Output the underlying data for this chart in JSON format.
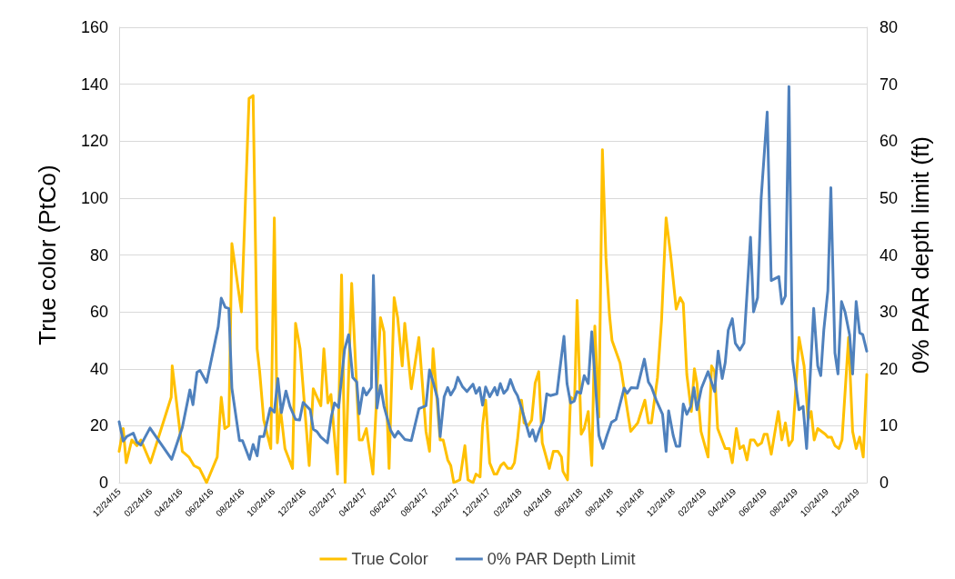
{
  "chart_data": {
    "type": "line",
    "ylabel": "True color (PtCo)",
    "y2label": "0% PAR depth limit (ft)",
    "xlim": [
      "2015-12-24",
      "2020-01-11"
    ],
    "xticks": [
      {
        "value": "2015-12-24",
        "label": "12/24/15"
      },
      {
        "value": "2016-02-24",
        "label": "02/24/16"
      },
      {
        "value": "2016-04-24",
        "label": "04/24/16"
      },
      {
        "value": "2016-06-24",
        "label": "06/24/16"
      },
      {
        "value": "2016-08-24",
        "label": "08/24/16"
      },
      {
        "value": "2016-10-24",
        "label": "10/24/16"
      },
      {
        "value": "2016-12-24",
        "label": "12/24/16"
      },
      {
        "value": "2017-02-24",
        "label": "02/24/17"
      },
      {
        "value": "2017-04-24",
        "label": "04/24/17"
      },
      {
        "value": "2017-06-24",
        "label": "06/24/17"
      },
      {
        "value": "2017-08-24",
        "label": "08/24/17"
      },
      {
        "value": "2017-10-24",
        "label": "10/24/17"
      },
      {
        "value": "2017-12-24",
        "label": "12/24/17"
      },
      {
        "value": "2018-02-24",
        "label": "02/24/18"
      },
      {
        "value": "2018-04-24",
        "label": "04/24/18"
      },
      {
        "value": "2018-06-24",
        "label": "06/24/18"
      },
      {
        "value": "2018-08-24",
        "label": "08/24/18"
      },
      {
        "value": "2018-10-24",
        "label": "10/24/18"
      },
      {
        "value": "2018-12-24",
        "label": "12/24/18"
      },
      {
        "value": "2019-02-24",
        "label": "02/24/19"
      },
      {
        "value": "2019-04-24",
        "label": "04/24/19"
      },
      {
        "value": "2019-06-24",
        "label": "06/24/19"
      },
      {
        "value": "2019-08-24",
        "label": "08/24/19"
      },
      {
        "value": "2019-10-24",
        "label": "10/24/19"
      },
      {
        "value": "2019-12-24",
        "label": "12/24/19"
      }
    ],
    "ylim": [
      0,
      160
    ],
    "yticks": [
      0,
      20,
      40,
      60,
      80,
      100,
      120,
      140,
      160
    ],
    "y2lim": [
      0,
      80
    ],
    "y2ticks": [
      0,
      10,
      20,
      30,
      40,
      50,
      60,
      70,
      80
    ],
    "grid": "y",
    "legend": "bottom",
    "marker": "none",
    "line_style": "solid",
    "series": [
      {
        "name": "True Color",
        "color": "#ffc000",
        "x": [
          "2015-12-24",
          "2016-01-01",
          "2016-01-07",
          "2016-01-18",
          "2016-01-28",
          "2016-02-05",
          "2016-02-24",
          "2016-04-05",
          "2016-04-07",
          "2016-04-27",
          "2016-05-10",
          "2016-05-20",
          "2016-05-31",
          "2016-06-14",
          "2016-07-05",
          "2016-07-13",
          "2016-07-20",
          "2016-07-28",
          "2016-08-03",
          "2016-08-22",
          "2016-09-06",
          "2016-09-14",
          "2016-09-22",
          "2016-09-27",
          "2016-10-05",
          "2016-10-19",
          "2016-10-26",
          "2016-11-01",
          "2016-11-07",
          "2016-11-16",
          "2016-12-01",
          "2016-12-07",
          "2016-12-16",
          "2017-01-03",
          "2017-01-11",
          "2017-01-26",
          "2017-02-01",
          "2017-02-09",
          "2017-02-15",
          "2017-02-28",
          "2017-03-08",
          "2017-03-15",
          "2017-03-28",
          "2017-04-12",
          "2017-04-18",
          "2017-04-26",
          "2017-05-09",
          "2017-05-24",
          "2017-05-31",
          "2017-06-10",
          "2017-06-20",
          "2017-06-27",
          "2017-07-06",
          "2017-07-11",
          "2017-07-24",
          "2017-08-08",
          "2017-08-22",
          "2017-08-29",
          "2017-09-05",
          "2017-09-19",
          "2017-09-25",
          "2017-10-04",
          "2017-10-10",
          "2017-10-16",
          "2017-10-28",
          "2017-11-07",
          "2017-11-13",
          "2017-11-23",
          "2017-11-29",
          "2017-12-07",
          "2017-12-12",
          "2017-12-18",
          "2017-12-26",
          "2018-01-04",
          "2018-01-09",
          "2018-01-17",
          "2018-01-23",
          "2018-01-31",
          "2018-02-07",
          "2018-02-13",
          "2018-02-19",
          "2018-02-27",
          "2018-03-04",
          "2018-03-12",
          "2018-03-19",
          "2018-03-26",
          "2018-04-02",
          "2018-04-09",
          "2018-04-23",
          "2018-05-01",
          "2018-05-10",
          "2018-05-17",
          "2018-05-20",
          "2018-05-29",
          "2018-06-04",
          "2018-06-12",
          "2018-06-17",
          "2018-06-25",
          "2018-07-01",
          "2018-07-09",
          "2018-07-16",
          "2018-07-22",
          "2018-07-30",
          "2018-08-06",
          "2018-08-13",
          "2018-08-20",
          "2018-08-25",
          "2018-09-10",
          "2018-09-23",
          "2018-10-01",
          "2018-10-15",
          "2018-10-29",
          "2018-11-05",
          "2018-11-11",
          "2018-11-23",
          "2018-12-01",
          "2018-12-10",
          "2018-12-19",
          "2018-12-30",
          "2019-01-07",
          "2019-01-13",
          "2019-01-20",
          "2019-01-29",
          "2019-02-04",
          "2019-02-09",
          "2019-02-17",
          "2019-03-03",
          "2019-03-10",
          "2019-03-16",
          "2019-03-22",
          "2019-04-06",
          "2019-04-14",
          "2019-04-20",
          "2019-04-28",
          "2019-05-05",
          "2019-05-12",
          "2019-05-19",
          "2019-05-26",
          "2019-06-02",
          "2019-06-09",
          "2019-06-17",
          "2019-06-22",
          "2019-06-28",
          "2019-07-06",
          "2019-07-20",
          "2019-07-27",
          "2019-08-03",
          "2019-08-10",
          "2019-08-17",
          "2019-08-30",
          "2019-09-09",
          "2019-09-17",
          "2019-09-23",
          "2019-09-29",
          "2019-10-06",
          "2019-10-21",
          "2019-10-26",
          "2019-11-02",
          "2019-11-09",
          "2019-11-17",
          "2019-11-23",
          "2019-12-06",
          "2019-12-14",
          "2019-12-21",
          "2019-12-28",
          "2020-01-04",
          "2020-01-11"
        ],
        "values": [
          11,
          19,
          7,
          15,
          13,
          15,
          7,
          30,
          41,
          11,
          9,
          6,
          5,
          0,
          9,
          30,
          19,
          20,
          84,
          60,
          135,
          136,
          47,
          39,
          22,
          12,
          93,
          14,
          26,
          12,
          5,
          56,
          47,
          6,
          33,
          27,
          47,
          28,
          31,
          3,
          73,
          0,
          70,
          15,
          15,
          19,
          3,
          58,
          53,
          5,
          65,
          58,
          41,
          56,
          33,
          51,
          18,
          11,
          47,
          15,
          15,
          8,
          6,
          0,
          1,
          13,
          1,
          0,
          3,
          2,
          20,
          29,
          7,
          3,
          3,
          6,
          7,
          5,
          5,
          7,
          15,
          29,
          21,
          20,
          22,
          35,
          39,
          14,
          5,
          11,
          11,
          9,
          4,
          1,
          30,
          29,
          64,
          17,
          19,
          25,
          6,
          55,
          23,
          117,
          79,
          59,
          50,
          42,
          27,
          18,
          21,
          29,
          21,
          21,
          37,
          57,
          93,
          80,
          61,
          65,
          63,
          38,
          25,
          40,
          35,
          18,
          9,
          41,
          39,
          19,
          12,
          12,
          7,
          19,
          12,
          13,
          8,
          15,
          15,
          13,
          14,
          17,
          17,
          10,
          25,
          15,
          21,
          13,
          15,
          51,
          41,
          22,
          25,
          15,
          19,
          17,
          16,
          16,
          13,
          12,
          15,
          51,
          18,
          12,
          16,
          9,
          38
        ]
      },
      {
        "name": "0% PAR Depth Limit",
        "color": "#4f81bd",
        "axis": "y2",
        "x": [
          "2015-12-24",
          "2016-01-01",
          "2016-01-08",
          "2016-01-21",
          "2016-01-28",
          "2016-02-05",
          "2016-02-23",
          "2016-04-06",
          "2016-04-27",
          "2016-05-12",
          "2016-05-18",
          "2016-05-26",
          "2016-06-01",
          "2016-06-14",
          "2016-07-07",
          "2016-07-13",
          "2016-07-21",
          "2016-07-28",
          "2016-08-03",
          "2016-08-18",
          "2016-08-24",
          "2016-09-07",
          "2016-09-14",
          "2016-09-22",
          "2016-09-27",
          "2016-10-05",
          "2016-10-18",
          "2016-10-26",
          "2016-11-02",
          "2016-11-09",
          "2016-11-18",
          "2016-11-26",
          "2016-12-07",
          "2016-12-15",
          "2016-12-22",
          "2017-01-05",
          "2017-01-11",
          "2017-01-18",
          "2017-01-26",
          "2017-02-08",
          "2017-02-16",
          "2017-02-22",
          "2017-03-02",
          "2017-03-14",
          "2017-03-22",
          "2017-03-30",
          "2017-04-07",
          "2017-04-12",
          "2017-04-20",
          "2017-04-26",
          "2017-05-06",
          "2017-05-10",
          "2017-05-17",
          "2017-05-24",
          "2017-05-31",
          "2017-06-13",
          "2017-06-21",
          "2017-06-28",
          "2017-07-11",
          "2017-07-24",
          "2017-08-08",
          "2017-08-22",
          "2017-08-29",
          "2017-09-06",
          "2017-09-14",
          "2017-09-19",
          "2017-09-27",
          "2017-10-04",
          "2017-10-10",
          "2017-10-18",
          "2017-10-24",
          "2017-11-02",
          "2017-11-11",
          "2017-11-23",
          "2017-11-29",
          "2017-12-06",
          "2017-12-12",
          "2017-12-18",
          "2017-12-26",
          "2018-01-05",
          "2018-01-10",
          "2018-01-16",
          "2018-01-23",
          "2018-01-30",
          "2018-02-05",
          "2018-02-13",
          "2018-02-19",
          "2018-02-27",
          "2018-03-08",
          "2018-03-15",
          "2018-03-21",
          "2018-03-27",
          "2018-04-04",
          "2018-04-11",
          "2018-04-18",
          "2018-04-25",
          "2018-05-08",
          "2018-05-14",
          "2018-05-22",
          "2018-05-28",
          "2018-06-04",
          "2018-06-11",
          "2018-06-17",
          "2018-06-24",
          "2018-07-01",
          "2018-07-09",
          "2018-07-16",
          "2018-07-24",
          "2018-07-30",
          "2018-08-07",
          "2018-08-15",
          "2018-08-24",
          "2018-09-02",
          "2018-09-18",
          "2018-09-24",
          "2018-10-02",
          "2018-10-14",
          "2018-10-28",
          "2018-11-05",
          "2018-11-11",
          "2018-11-20",
          "2018-12-03",
          "2018-12-10",
          "2018-12-15",
          "2018-12-24",
          "2018-12-30",
          "2019-01-06",
          "2019-01-13",
          "2019-01-20",
          "2019-01-28",
          "2019-02-03",
          "2019-02-09",
          "2019-02-18",
          "2019-03-03",
          "2019-03-16",
          "2019-03-23",
          "2019-03-31",
          "2019-04-06",
          "2019-04-12",
          "2019-04-20",
          "2019-04-26",
          "2019-05-05",
          "2019-05-13",
          "2019-05-26",
          "2019-06-01",
          "2019-06-09",
          "2019-06-16",
          "2019-06-28",
          "2019-07-06",
          "2019-07-21",
          "2019-07-27",
          "2019-08-03",
          "2019-08-10",
          "2019-08-17",
          "2019-08-30",
          "2019-09-07",
          "2019-09-14",
          "2019-09-20",
          "2019-09-28",
          "2019-10-06",
          "2019-10-12",
          "2019-10-18",
          "2019-10-26",
          "2019-11-01",
          "2019-11-09",
          "2019-11-15",
          "2019-11-22",
          "2019-11-29",
          "2019-12-08",
          "2019-12-14",
          "2019-12-21",
          "2019-12-28",
          "2020-01-03",
          "2020-01-11"
        ],
        "values": [
          10.7,
          7.3,
          8.1,
          8.7,
          7.1,
          6.6,
          9.6,
          4.1,
          9.7,
          16.3,
          13.7,
          19.4,
          19.7,
          17.6,
          27.4,
          32.4,
          30.8,
          30.6,
          16.6,
          7.4,
          7.4,
          4.1,
          6.7,
          4.7,
          8.1,
          8.1,
          13.1,
          12.4,
          18.3,
          12.3,
          16.1,
          13.4,
          11.1,
          11,
          14.1,
          12.8,
          9.4,
          9,
          8,
          7,
          11.7,
          14,
          13.2,
          23.4,
          26,
          18.5,
          17.7,
          12.1,
          16.6,
          15.4,
          16.7,
          36.4,
          13.1,
          17.1,
          13.4,
          9.2,
          8,
          9,
          7.6,
          7.4,
          13,
          13.5,
          19.8,
          17.4,
          14.7,
          8.1,
          15.1,
          16.7,
          15.4,
          16.6,
          18.5,
          16.9,
          16,
          17.3,
          15.7,
          16.7,
          13.6,
          16.8,
          15.1,
          16.7,
          15.4,
          17.4,
          15.7,
          16.4,
          18.1,
          16.2,
          15.3,
          13.1,
          10.3,
          8.1,
          9.3,
          7.3,
          9.4,
          10.8,
          15.6,
          15.3,
          15.6,
          20,
          25.7,
          17.4,
          14,
          14.3,
          16,
          15.7,
          18.8,
          17.4,
          26.5,
          16.3,
          8.3,
          6,
          8.3,
          10.6,
          11.1,
          16.6,
          15.7,
          16.7,
          16.6,
          21.7,
          17.7,
          16.8,
          14.6,
          12,
          5.5,
          12.6,
          8.3,
          6.4,
          6.4,
          13.8,
          12,
          13.4,
          16.7,
          12.8,
          16.6,
          19.5,
          16,
          23.1,
          18.3,
          21.1,
          26.8,
          28.8,
          24.5,
          23.3,
          24.5,
          43.1,
          30,
          32.5,
          49.9,
          65.1,
          35.5,
          36.2,
          31.4,
          32.8,
          69.6,
          21.7,
          12.8,
          13.4,
          6,
          16.8,
          30.6,
          20.5,
          18.8,
          26.8,
          33.7,
          51.8,
          22.8,
          19.1,
          31.8,
          30,
          26,
          19.1,
          31.8,
          26.3,
          26,
          23.1
        ]
      }
    ]
  }
}
